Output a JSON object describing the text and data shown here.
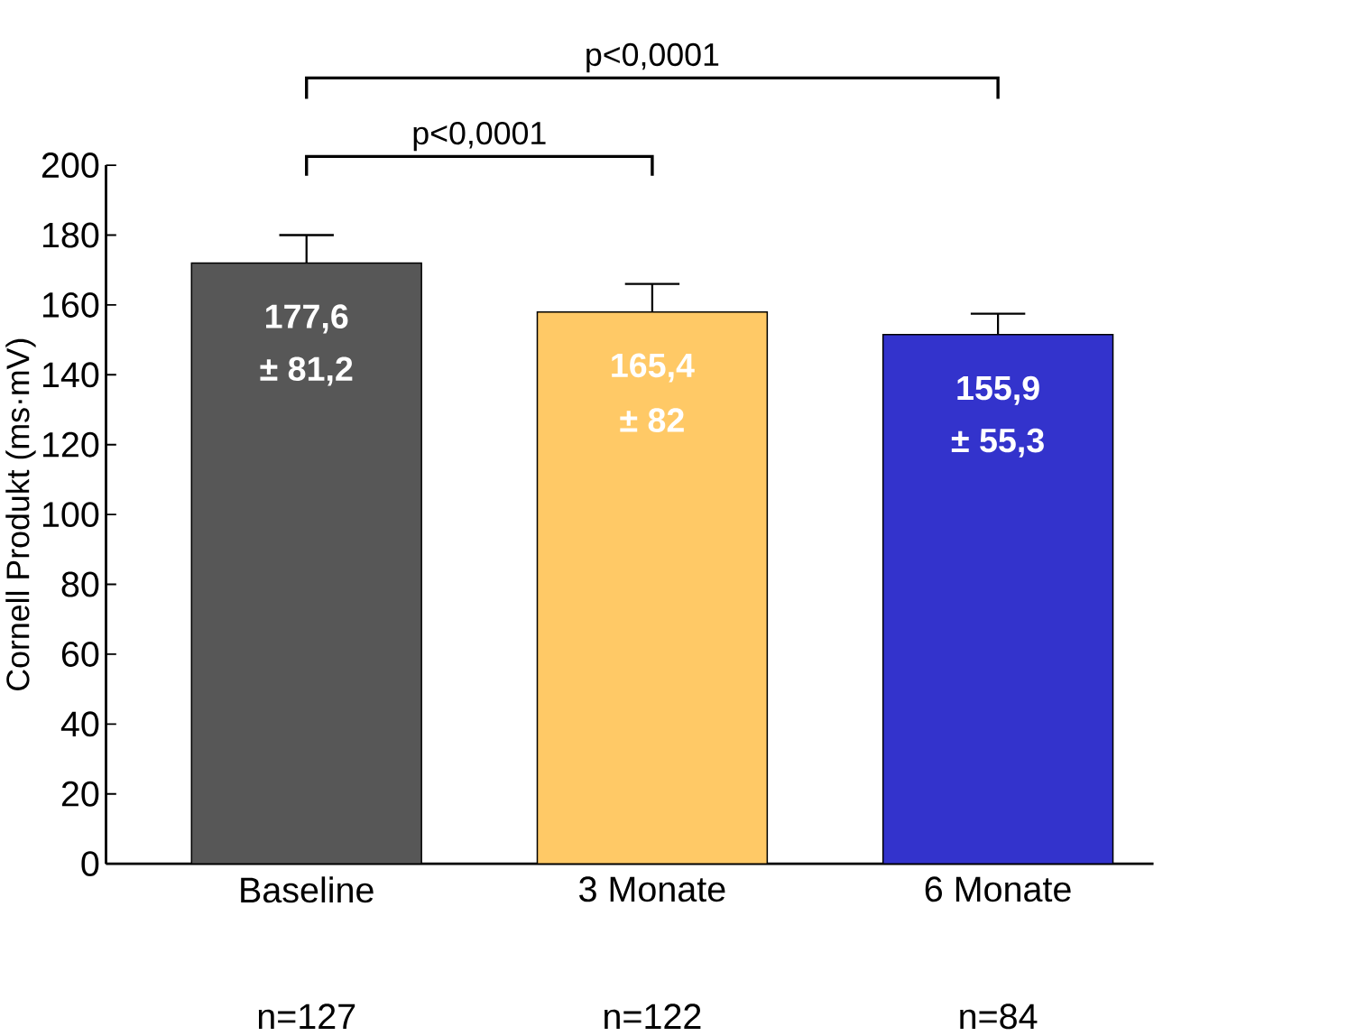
{
  "chart_data": {
    "type": "bar",
    "ylabel": "Cornell Produkt (ms·mV)",
    "categories": [
      "Baseline",
      "3 Monate",
      "6 Monate"
    ],
    "values": [
      172,
      158,
      151.5
    ],
    "colors": [
      "#575757",
      "#ffc966",
      "#3333cc"
    ],
    "errors": [
      8,
      8,
      6
    ],
    "ylim": [
      0,
      200
    ],
    "yticks": [
      0,
      20,
      40,
      60,
      80,
      100,
      120,
      140,
      160,
      180,
      200
    ],
    "annotations": [
      "p<0,0001",
      "p<0,0001",
      "n=127",
      "n=122",
      "n=84",
      "177,6",
      "± 81,2",
      "165,4",
      "± 82",
      "155,9",
      "± 55,3"
    ]
  }
}
